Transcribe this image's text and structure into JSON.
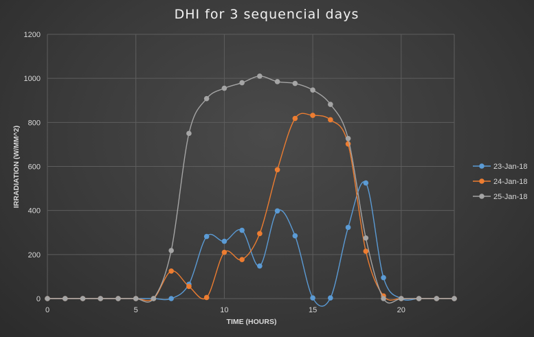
{
  "chart_data": {
    "type": "line",
    "title": "DHI for 3 sequencial days",
    "xlabel": "TIME (HOURS)",
    "ylabel": "IRRADIATION (W/MM^2)",
    "xlim": [
      0,
      23
    ],
    "ylim": [
      0,
      1200
    ],
    "x_ticks": [
      0,
      5,
      10,
      15,
      20
    ],
    "y_ticks": [
      0,
      200,
      400,
      600,
      800,
      1000,
      1200
    ],
    "grid": true,
    "legend_position": "right",
    "x": [
      0,
      1,
      2,
      3,
      4,
      5,
      6,
      7,
      8,
      9,
      10,
      11,
      12,
      13,
      14,
      15,
      16,
      17,
      18,
      19,
      20,
      21,
      22,
      23
    ],
    "series": [
      {
        "name": "23-Jan-18",
        "color": "#5b9bd5",
        "values": [
          0,
          0,
          0,
          0,
          0,
          0,
          0,
          0,
          65,
          282,
          260,
          310,
          148,
          398,
          285,
          3,
          3,
          323,
          525,
          95,
          0,
          0,
          0,
          0
        ]
      },
      {
        "name": "24-Jan-18",
        "color": "#ed7d31",
        "values": [
          0,
          0,
          0,
          0,
          0,
          0,
          0,
          125,
          55,
          5,
          210,
          177,
          295,
          585,
          818,
          832,
          812,
          702,
          215,
          12,
          0,
          0,
          0,
          0
        ]
      },
      {
        "name": "25-Jan-18",
        "color": "#a5a5a5",
        "values": [
          0,
          0,
          0,
          0,
          0,
          0,
          0,
          218,
          750,
          908,
          955,
          980,
          1010,
          985,
          977,
          947,
          882,
          727,
          275,
          0,
          0,
          0,
          0,
          0
        ]
      }
    ]
  }
}
